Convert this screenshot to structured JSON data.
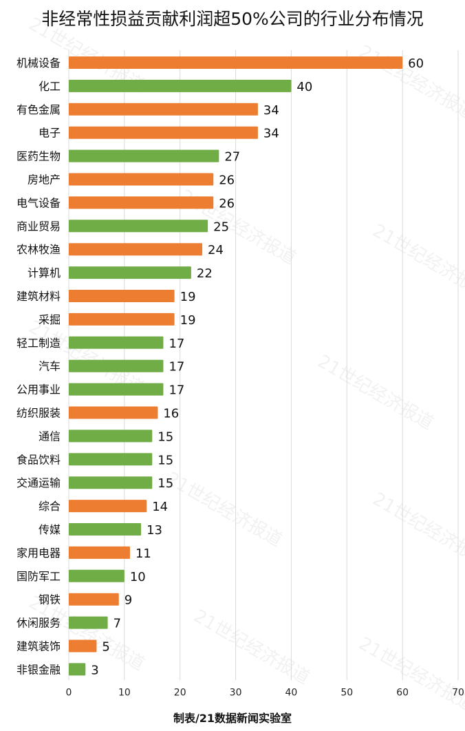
{
  "chart_data": {
    "type": "bar",
    "orientation": "horizontal",
    "title": "非经常性损益贡献利润超50%公司的行业分布情况",
    "categories": [
      "机械设备",
      "化工",
      "有色金属",
      "电子",
      "医药生物",
      "房地产",
      "电气设备",
      "商业贸易",
      "农林牧渔",
      "计算机",
      "建筑材料",
      "采掘",
      "轻工制造",
      "汽车",
      "公用事业",
      "纺织服装",
      "通信",
      "食品饮料",
      "交通运输",
      "综合",
      "传媒",
      "家用电器",
      "国防军工",
      "钢铁",
      "休闲服务",
      "建筑装饰",
      "非银金融"
    ],
    "values": [
      60,
      40,
      34,
      34,
      27,
      26,
      26,
      25,
      24,
      22,
      19,
      19,
      17,
      17,
      17,
      16,
      15,
      15,
      15,
      14,
      13,
      11,
      10,
      9,
      7,
      5,
      3
    ],
    "bar_colors": [
      "#ED7D31",
      "#70AD47",
      "#ED7D31",
      "#ED7D31",
      "#70AD47",
      "#ED7D31",
      "#ED7D31",
      "#70AD47",
      "#ED7D31",
      "#70AD47",
      "#ED7D31",
      "#ED7D31",
      "#70AD47",
      "#70AD47",
      "#70AD47",
      "#ED7D31",
      "#70AD47",
      "#70AD47",
      "#70AD47",
      "#ED7D31",
      "#70AD47",
      "#ED7D31",
      "#70AD47",
      "#ED7D31",
      "#70AD47",
      "#ED7D31",
      "#70AD47"
    ],
    "xlim": [
      0,
      70
    ],
    "x_ticks": [
      "0",
      "10",
      "20",
      "30",
      "40",
      "50",
      "60",
      "70"
    ],
    "grid": "vertical",
    "data_labels": true
  },
  "footer": "制表/21数据新闻实验室",
  "watermark": "21世纪经济报道",
  "colors": {
    "orange": "#ED7D31",
    "green": "#70AD47",
    "grid": "#D9D9D9"
  }
}
